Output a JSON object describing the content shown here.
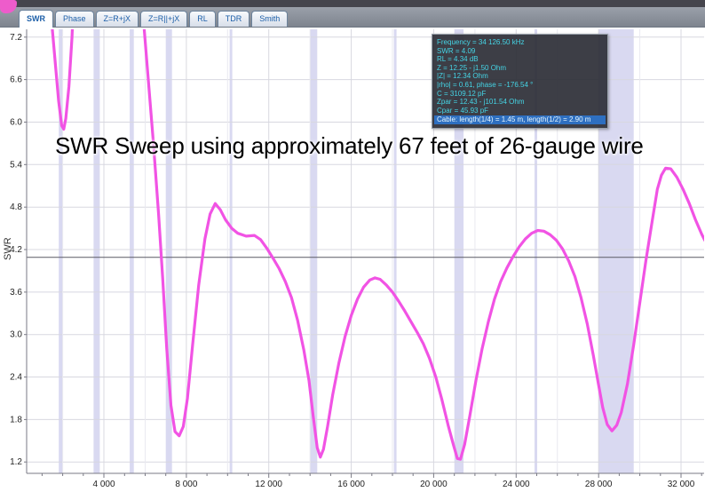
{
  "tabs": [
    {
      "label": "SWR",
      "active": true
    },
    {
      "label": "Phase",
      "active": false
    },
    {
      "label": "Z=R+jX",
      "active": false
    },
    {
      "label": "Z=R||+jX",
      "active": false
    },
    {
      "label": "RL",
      "active": false
    },
    {
      "label": "TDR",
      "active": false
    },
    {
      "label": "Smith",
      "active": false
    }
  ],
  "caption": "SWR Sweep using approximately 67 feet of 26-gauge wire",
  "tooltip": {
    "lines": [
      "Frequency = 34 126.50 kHz",
      "SWR = 4.09",
      "RL = 4.34 dB",
      "Z = 12.25 - j1.50 Ohm",
      "|Z| = 12.34 Ohm",
      "|rho| = 0.61, phase = -176.54 °",
      "C = 3109.12 pF",
      "Zpar = 12.43 - j101.54 Ohm",
      "Cpar = 45.93 pF"
    ],
    "highlight_line": "Cable: length(1/4) = 1.45 m, length(1/2) = 2.90 m"
  },
  "colors": {
    "curve": "#f153e4",
    "band": "#d9d9f1",
    "grid": "#d8d8e0",
    "grid_minor": "#e9e9f0",
    "axis": "#7a7a85",
    "cursor_line": "#5a5a64",
    "tick_text": "#222222",
    "tooltip_text": "#45d5e6",
    "tooltip_highlight_bg": "#2e6fc0",
    "tooltip_highlight_text": "#e8f8ff"
  },
  "chart_data": {
    "type": "line",
    "ylabel": "SWR",
    "x_unit": "kHz",
    "x_range": [
      250,
      33120
    ],
    "y_range": [
      1.04,
      7.31
    ],
    "cursor_swr": 4.09,
    "x_ticks": [
      {
        "v": 4000,
        "label": "4 000"
      },
      {
        "v": 8000,
        "label": "8 000"
      },
      {
        "v": 12000,
        "label": "12 000"
      },
      {
        "v": 16000,
        "label": "16 000"
      },
      {
        "v": 20000,
        "label": "20 000"
      },
      {
        "v": 24000,
        "label": "24 000"
      },
      {
        "v": 28000,
        "label": "28 000"
      },
      {
        "v": 32000,
        "label": "32 000"
      }
    ],
    "y_ticks": [
      {
        "v": 7.2,
        "label": "7.2"
      },
      {
        "v": 6.6,
        "label": "6.6"
      },
      {
        "v": 6.0,
        "label": "6.0"
      },
      {
        "v": 5.4,
        "label": "5.4"
      },
      {
        "v": 4.8,
        "label": "4.8"
      },
      {
        "v": 4.2,
        "label": "4.2"
      },
      {
        "v": 3.6,
        "label": "3.6"
      },
      {
        "v": 3.0,
        "label": "3.0"
      },
      {
        "v": 2.4,
        "label": "2.4"
      },
      {
        "v": 1.8,
        "label": "1.8"
      },
      {
        "v": 1.2,
        "label": "1.2"
      }
    ],
    "band_highlights": [
      [
        1810,
        2000
      ],
      [
        3500,
        3800
      ],
      [
        5250,
        5450
      ],
      [
        7000,
        7300
      ],
      [
        10100,
        10150
      ],
      [
        14000,
        14350
      ],
      [
        18068,
        18168
      ],
      [
        21000,
        21450
      ],
      [
        24890,
        24990
      ],
      [
        28000,
        29700
      ]
    ],
    "series": [
      {
        "name": "SWR",
        "color": "#f153e4",
        "points": [
          [
            1300,
            7.8
          ],
          [
            1500,
            7.3
          ],
          [
            1650,
            6.8
          ],
          [
            1800,
            6.3
          ],
          [
            1950,
            5.95
          ],
          [
            2050,
            5.9
          ],
          [
            2150,
            6.05
          ],
          [
            2300,
            6.5
          ],
          [
            2450,
            7.2
          ],
          [
            2600,
            8.2
          ],
          [
            3200,
            9.6
          ],
          [
            5200,
            9.6
          ],
          [
            5600,
            8.5
          ],
          [
            5900,
            7.5
          ],
          [
            6150,
            6.6
          ],
          [
            6400,
            5.7
          ],
          [
            6650,
            4.7
          ],
          [
            6850,
            3.8
          ],
          [
            7050,
            2.8
          ],
          [
            7250,
            2.0
          ],
          [
            7450,
            1.63
          ],
          [
            7650,
            1.57
          ],
          [
            7850,
            1.7
          ],
          [
            8050,
            2.1
          ],
          [
            8300,
            2.85
          ],
          [
            8600,
            3.7
          ],
          [
            8900,
            4.35
          ],
          [
            9150,
            4.7
          ],
          [
            9400,
            4.85
          ],
          [
            9650,
            4.76
          ],
          [
            9900,
            4.62
          ],
          [
            10200,
            4.5
          ],
          [
            10500,
            4.43
          ],
          [
            10900,
            4.39
          ],
          [
            11300,
            4.4
          ],
          [
            11600,
            4.34
          ],
          [
            11900,
            4.22
          ],
          [
            12200,
            4.08
          ],
          [
            12500,
            3.93
          ],
          [
            12800,
            3.75
          ],
          [
            13100,
            3.52
          ],
          [
            13400,
            3.2
          ],
          [
            13700,
            2.78
          ],
          [
            13950,
            2.35
          ],
          [
            14150,
            1.85
          ],
          [
            14350,
            1.4
          ],
          [
            14500,
            1.27
          ],
          [
            14650,
            1.38
          ],
          [
            14850,
            1.7
          ],
          [
            15100,
            2.15
          ],
          [
            15400,
            2.6
          ],
          [
            15700,
            2.97
          ],
          [
            16000,
            3.27
          ],
          [
            16300,
            3.5
          ],
          [
            16600,
            3.67
          ],
          [
            16900,
            3.77
          ],
          [
            17150,
            3.8
          ],
          [
            17400,
            3.78
          ],
          [
            17700,
            3.7
          ],
          [
            18000,
            3.6
          ],
          [
            18300,
            3.47
          ],
          [
            18600,
            3.33
          ],
          [
            18900,
            3.18
          ],
          [
            19200,
            3.03
          ],
          [
            19500,
            2.87
          ],
          [
            19800,
            2.66
          ],
          [
            20100,
            2.4
          ],
          [
            20400,
            2.08
          ],
          [
            20700,
            1.72
          ],
          [
            20950,
            1.45
          ],
          [
            21150,
            1.25
          ],
          [
            21300,
            1.24
          ],
          [
            21500,
            1.45
          ],
          [
            21750,
            1.85
          ],
          [
            22050,
            2.35
          ],
          [
            22350,
            2.8
          ],
          [
            22650,
            3.18
          ],
          [
            22950,
            3.5
          ],
          [
            23250,
            3.75
          ],
          [
            23550,
            3.94
          ],
          [
            23850,
            4.1
          ],
          [
            24150,
            4.24
          ],
          [
            24450,
            4.35
          ],
          [
            24750,
            4.43
          ],
          [
            25050,
            4.47
          ],
          [
            25350,
            4.46
          ],
          [
            25650,
            4.41
          ],
          [
            25950,
            4.33
          ],
          [
            26250,
            4.21
          ],
          [
            26550,
            4.04
          ],
          [
            26850,
            3.82
          ],
          [
            27150,
            3.52
          ],
          [
            27450,
            3.15
          ],
          [
            27750,
            2.7
          ],
          [
            27980,
            2.32
          ],
          [
            28200,
            1.97
          ],
          [
            28420,
            1.73
          ],
          [
            28650,
            1.64
          ],
          [
            28880,
            1.72
          ],
          [
            29100,
            1.9
          ],
          [
            29400,
            2.3
          ],
          [
            29700,
            2.85
          ],
          [
            30000,
            3.45
          ],
          [
            30300,
            4.05
          ],
          [
            30600,
            4.6
          ],
          [
            30850,
            5.05
          ],
          [
            31050,
            5.25
          ],
          [
            31250,
            5.35
          ],
          [
            31500,
            5.34
          ],
          [
            31800,
            5.22
          ],
          [
            32100,
            5.05
          ],
          [
            32400,
            4.85
          ],
          [
            32700,
            4.62
          ],
          [
            33000,
            4.42
          ],
          [
            33150,
            4.33
          ]
        ]
      }
    ]
  }
}
